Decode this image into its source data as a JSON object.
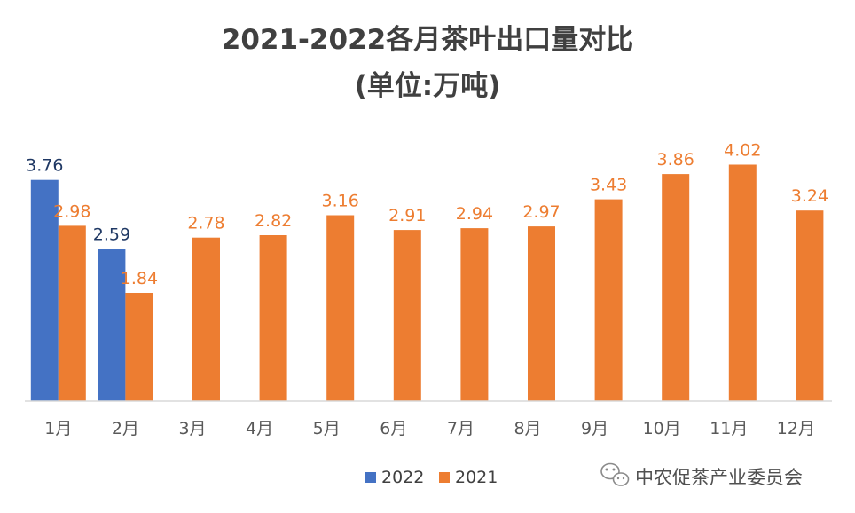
{
  "chart_data": {
    "type": "bar",
    "title": "2021-2022各月茶叶出口量对比",
    "subtitle": "(单位:万吨)",
    "categories": [
      "1月",
      "2月",
      "3月",
      "4月",
      "5月",
      "6月",
      "7月",
      "8月",
      "9月",
      "10月",
      "11月",
      "12月"
    ],
    "series": [
      {
        "name": "2022",
        "color": "#4472C4",
        "values": [
          3.76,
          2.59,
          null,
          null,
          null,
          null,
          null,
          null,
          null,
          null,
          null,
          null
        ],
        "labels": [
          "3.76",
          "2.59",
          "",
          "",
          "",
          "",
          "",
          "",
          "",
          "",
          "",
          ""
        ]
      },
      {
        "name": "2021",
        "color": "#ED7D31",
        "values": [
          2.98,
          1.84,
          2.78,
          2.82,
          3.16,
          2.91,
          2.94,
          2.97,
          3.43,
          3.86,
          4.02,
          3.24
        ],
        "labels": [
          "2.98",
          "1.84",
          "2.78",
          "2.82",
          "3.16",
          "2.91",
          "2.94",
          "2.97",
          "3.43",
          "3.86",
          "4.02",
          "3.24"
        ]
      }
    ],
    "ylim": [
      0,
      4.5
    ],
    "xlabel": "",
    "ylabel": "",
    "grid": false,
    "legend": "bottom-center",
    "label_colors": {
      "2022": "#1F3864",
      "2021": "#ED7D31"
    }
  },
  "watermark": {
    "text": "中农促茶产业委员会",
    "icon": "wechat-icon"
  }
}
